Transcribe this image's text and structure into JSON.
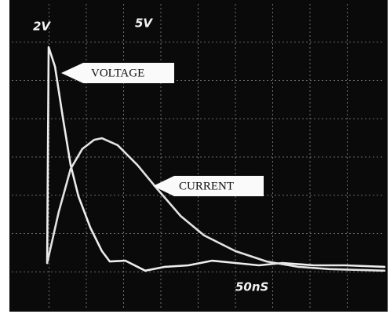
{
  "chart_data": {
    "type": "line",
    "annotations": [
      "2V",
      "5V",
      "VOLTAGE",
      "CURRENT",
      "50nS"
    ],
    "xlim": [
      0,
      10
    ],
    "ylim": [
      0,
      8
    ],
    "series": [
      {
        "name": "VOLTAGE",
        "color": "#ededed",
        "x": [
          0.95,
          0.99,
          1.16,
          1.37,
          1.58,
          1.79,
          2.11,
          2.42,
          2.63,
          3.05,
          3.58,
          4.11,
          4.74,
          5.37,
          6.0,
          6.63,
          7.26,
          8.11,
          8.95,
          10
        ],
        "values": [
          1.23,
          6.87,
          6.36,
          5.03,
          3.79,
          2.97,
          2.15,
          1.54,
          1.27,
          1.29,
          1.03,
          1.13,
          1.17,
          1.29,
          1.23,
          1.17,
          1.23,
          1.17,
          1.17,
          1.13
        ]
      },
      {
        "name": "CURRENT",
        "color": "#e4e4e4",
        "x": [
          0.95,
          1.26,
          1.58,
          1.89,
          2.21,
          2.42,
          2.84,
          3.37,
          3.89,
          4.53,
          5.16,
          6.0,
          6.84,
          7.68,
          8.53,
          10
        ],
        "values": [
          1.23,
          2.56,
          3.69,
          4.21,
          4.45,
          4.49,
          4.31,
          3.79,
          3.18,
          2.46,
          1.95,
          1.54,
          1.27,
          1.13,
          1.07,
          1.03
        ]
      }
    ]
  }
}
